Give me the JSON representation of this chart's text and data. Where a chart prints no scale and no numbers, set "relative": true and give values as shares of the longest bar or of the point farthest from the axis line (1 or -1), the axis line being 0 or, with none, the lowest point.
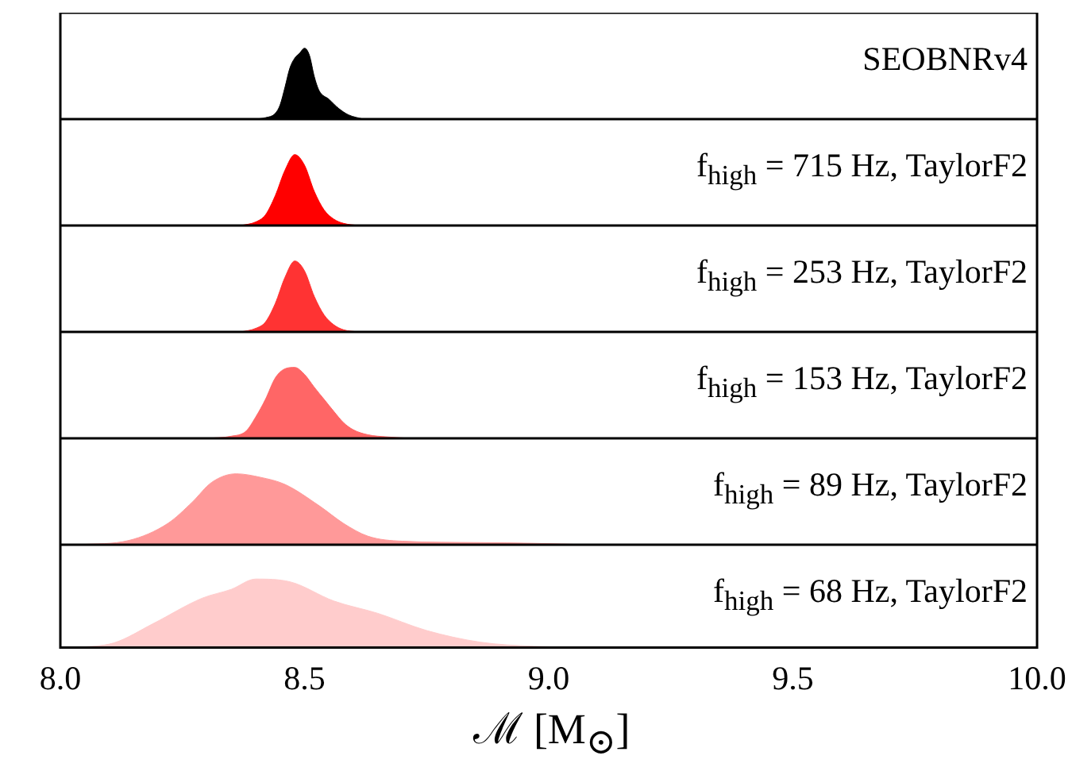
{
  "chart_data": [
    {
      "type": "area",
      "relative": true,
      "tick_labels": false,
      "xlim": [
        8.0,
        10.0
      ],
      "annotations": [
        "SEOBNRv4"
      ],
      "series": [
        {
          "color": "#000000",
          "x": [
            8.4,
            8.42,
            8.44,
            8.45,
            8.46,
            8.47,
            8.48,
            8.49,
            8.5,
            8.51,
            8.52,
            8.53,
            8.55,
            8.57,
            8.59,
            8.62
          ],
          "values": [
            0,
            0.02,
            0.08,
            0.2,
            0.45,
            0.72,
            0.86,
            0.93,
            1.0,
            0.9,
            0.6,
            0.4,
            0.28,
            0.15,
            0.06,
            0
          ]
        }
      ]
    },
    {
      "type": "area",
      "relative": true,
      "tick_labels": false,
      "xlim": [
        8.0,
        10.0
      ],
      "annotations": [
        "f$_{high}$ = 715 Hz, TaylorF2"
      ],
      "series": [
        {
          "color": "#ff0000",
          "x": [
            8.37,
            8.4,
            8.42,
            8.44,
            8.46,
            8.48,
            8.5,
            8.52,
            8.54,
            8.56,
            8.58,
            8.61
          ],
          "values": [
            0,
            0.05,
            0.15,
            0.42,
            0.78,
            1.0,
            0.85,
            0.48,
            0.22,
            0.09,
            0.03,
            0
          ]
        }
      ]
    },
    {
      "type": "area",
      "relative": true,
      "tick_labels": false,
      "xlim": [
        8.0,
        10.0
      ],
      "annotations": [
        "f$_{high}$ = 253 Hz, TaylorF2"
      ],
      "series": [
        {
          "color": "#ff3333",
          "x": [
            8.37,
            8.4,
            8.42,
            8.44,
            8.46,
            8.48,
            8.5,
            8.52,
            8.54,
            8.56,
            8.58,
            8.61
          ],
          "values": [
            0,
            0.05,
            0.14,
            0.4,
            0.77,
            1.0,
            0.86,
            0.5,
            0.24,
            0.1,
            0.03,
            0
          ]
        }
      ]
    },
    {
      "type": "area",
      "relative": true,
      "tick_labels": false,
      "xlim": [
        8.0,
        10.0
      ],
      "annotations": [
        "f$_{high}$ = 153 Hz, TaylorF2"
      ],
      "series": [
        {
          "color": "#ff6666",
          "x": [
            8.3,
            8.35,
            8.38,
            8.4,
            8.42,
            8.44,
            8.46,
            8.48,
            8.5,
            8.52,
            8.54,
            8.56,
            8.58,
            8.6,
            8.63,
            8.67,
            8.72
          ],
          "values": [
            0,
            0.03,
            0.1,
            0.3,
            0.55,
            0.85,
            0.98,
            1.0,
            0.9,
            0.72,
            0.55,
            0.38,
            0.22,
            0.12,
            0.05,
            0.02,
            0
          ]
        }
      ]
    },
    {
      "type": "area",
      "relative": true,
      "tick_labels": false,
      "xlim": [
        8.0,
        10.0
      ],
      "annotations": [
        "f$_{high}$ = 89 Hz, TaylorF2"
      ],
      "series": [
        {
          "color": "#ff9999",
          "x": [
            8.04,
            8.14,
            8.22,
            8.27,
            8.31,
            8.36,
            8.41,
            8.46,
            8.53,
            8.58,
            8.63,
            8.7,
            8.86,
            8.97,
            9.08
          ],
          "values": [
            0,
            0.06,
            0.3,
            0.6,
            0.88,
            1.0,
            0.95,
            0.85,
            0.55,
            0.3,
            0.12,
            0.05,
            0.03,
            0.02,
            0
          ]
        }
      ]
    },
    {
      "type": "area",
      "relative": true,
      "tick_labels": "x",
      "xlabel": "ℳ [M$_{⊙}$]",
      "xlim": [
        8.0,
        10.0
      ],
      "xticks": [
        {
          "value": 8,
          "label": "8.0"
        },
        {
          "value": 8.5,
          "label": "8.5"
        },
        {
          "value": 9,
          "label": "9.0"
        },
        {
          "value": 9.5,
          "label": "9.5"
        },
        {
          "value": 10,
          "label": "10.0"
        }
      ],
      "annotations": [
        "f$_{high}$ = 68 Hz, TaylorF2"
      ],
      "series": [
        {
          "color": "#ffcccc",
          "x": [
            8.03,
            8.11,
            8.19,
            8.29,
            8.35,
            8.4,
            8.47,
            8.56,
            8.65,
            8.75,
            8.86,
            8.97,
            9.15
          ],
          "values": [
            0,
            0.07,
            0.35,
            0.72,
            0.85,
            1.0,
            0.96,
            0.68,
            0.5,
            0.25,
            0.08,
            0.02,
            0
          ]
        }
      ]
    }
  ]
}
